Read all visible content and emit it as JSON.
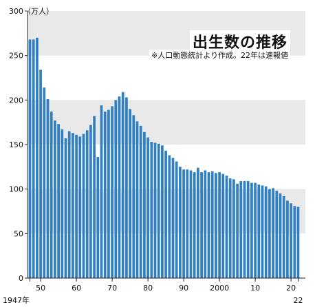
{
  "chart_data": {
    "type": "bar",
    "title": "出生数の推移",
    "subtitle": "※人口動態統計より作成。22年は速報値",
    "unit": "（万人）",
    "ylim": [
      0,
      300
    ],
    "y_ticks": [
      "300",
      "250",
      "200",
      "150",
      "100",
      "50",
      "0"
    ],
    "grid": "alternating horizontal bands",
    "x_tick_labels": [
      {
        "year": 1947,
        "label": "1947年"
      },
      {
        "year": 1950,
        "label": "50"
      },
      {
        "year": 1960,
        "label": "60"
      },
      {
        "year": 1970,
        "label": "70"
      },
      {
        "year": 1980,
        "label": "80"
      },
      {
        "year": 1990,
        "label": "90"
      },
      {
        "year": 2000,
        "label": "2000"
      },
      {
        "year": 2010,
        "label": "10"
      },
      {
        "year": 2020,
        "label": "20"
      },
      {
        "year": 2022,
        "label": "22"
      }
    ],
    "categories": [
      1947,
      1948,
      1949,
      1950,
      1951,
      1952,
      1953,
      1954,
      1955,
      1956,
      1957,
      1958,
      1959,
      1960,
      1961,
      1962,
      1963,
      1964,
      1965,
      1966,
      1967,
      1968,
      1969,
      1970,
      1971,
      1972,
      1973,
      1974,
      1975,
      1976,
      1977,
      1978,
      1979,
      1980,
      1981,
      1982,
      1983,
      1984,
      1985,
      1986,
      1987,
      1988,
      1989,
      1990,
      1991,
      1992,
      1993,
      1994,
      1995,
      1996,
      1997,
      1998,
      1999,
      2000,
      2001,
      2002,
      2003,
      2004,
      2005,
      2006,
      2007,
      2008,
      2009,
      2010,
      2011,
      2012,
      2013,
      2014,
      2015,
      2016,
      2017,
      2018,
      2019,
      2020,
      2021,
      2022
    ],
    "values": [
      268,
      268,
      270,
      234,
      214,
      201,
      187,
      177,
      173,
      167,
      157,
      165,
      163,
      161,
      159,
      162,
      166,
      172,
      182,
      136,
      194,
      187,
      189,
      193,
      200,
      204,
      209,
      203,
      190,
      183,
      176,
      171,
      164,
      158,
      153,
      152,
      151,
      149,
      143,
      138,
      135,
      131,
      125,
      122,
      122,
      121,
      119,
      124,
      119,
      121,
      119,
      120,
      118,
      119,
      117,
      115,
      112,
      111,
      106,
      109,
      109,
      109,
      107,
      107,
      105,
      104,
      103,
      100,
      101,
      98,
      95,
      92,
      87,
      84,
      81,
      80
    ],
    "bar_color": "#2f7fc3",
    "band_color": "#e9e9e9"
  }
}
